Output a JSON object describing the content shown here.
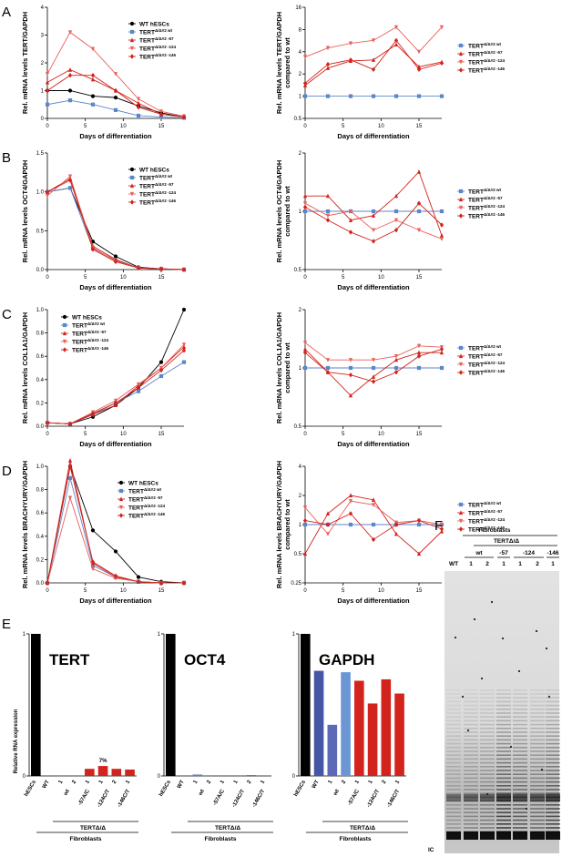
{
  "colors": {
    "wt": "#000000",
    "ctrl": "#5b86c9",
    "red": "#d2231d",
    "lightred": "#e8605a",
    "gray": "#777777"
  },
  "panels": [
    {
      "letter": "A",
      "legend": [
        "WT hESCs",
        "TERTΔ/Δ#2 wt",
        "TERTΔ/Δ#2 -57",
        "TERTΔ/Δ#2 -124",
        "TERTΔ/Δ#2 -146"
      ],
      "left": {
        "ylabel": "Rel. mRNA levels TERT/GAPDH",
        "xlabel": "Days of differentiation",
        "ylim": [
          0,
          4
        ],
        "yticks": [
          "0",
          "1",
          "2",
          "3",
          "4"
        ],
        "xticks": [
          "0",
          "5",
          "10",
          "15"
        ]
      },
      "right": {
        "ylabel": "Rel. mRNA levels TERT/GAPDH compared to wt",
        "xlabel": "Days of differentiation",
        "yticks": [
          "0.5",
          "1",
          "2",
          "4",
          "8",
          "16"
        ],
        "xticks": [
          "0",
          "5",
          "10",
          "15"
        ]
      }
    },
    {
      "letter": "B",
      "legend": [
        "WT hESCs",
        "TERTΔ/Δ#2 wt",
        "TERTΔ/Δ#2 -57",
        "TERTΔ/Δ#2 -124",
        "TERTΔ/Δ#2 -146"
      ],
      "left": {
        "ylabel": "Rel. mRNA levels OCT4/GAPDH",
        "xlabel": "Days of differentiation",
        "ylim": [
          0,
          1.5
        ],
        "yticks": [
          "0.0",
          "0.5",
          "1.0",
          "1.5"
        ],
        "xticks": [
          "0",
          "5",
          "10",
          "15"
        ]
      },
      "right": {
        "ylabel": "Rel. mRNA levels OCT4/GAPDH compared to wt",
        "xlabel": "Days of differentiation",
        "yticks": [
          "0.5",
          "1",
          "2"
        ],
        "xticks": [
          "0",
          "5",
          "10",
          "15"
        ]
      }
    },
    {
      "letter": "C",
      "legend": [
        "WT hESCs",
        "TERTΔ/Δ#2 wt",
        "TERTΔ/Δ#2 -57",
        "TERTΔ/Δ#2 -124",
        "TERTΔ/Δ#2 -146"
      ],
      "left": {
        "ylabel": "Rel. mRNA levels COL1A1/GAPDH",
        "xlabel": "Days of differentiation",
        "ylim": [
          0,
          1.0
        ],
        "yticks": [
          "0.0",
          "0.2",
          "0.4",
          "0.6",
          "0.8",
          "1.0"
        ],
        "xticks": [
          "0",
          "5",
          "10",
          "15"
        ]
      },
      "right": {
        "ylabel": "Rel. mRNA levels COL1A1/GAPDH compared to wt",
        "xlabel": "Days of differentiation",
        "yticks": [
          "0.5",
          "1",
          "2"
        ],
        "xticks": [
          "0",
          "5",
          "10",
          "15"
        ]
      }
    },
    {
      "letter": "D",
      "legend": [
        "WT hESCs",
        "TERTΔ/Δ#2 wt",
        "TERTΔ/Δ#2 -57",
        "TERTΔ/Δ#2 -124",
        "TERTΔ/Δ#2 -146"
      ],
      "left": {
        "ylabel": "Rel. mRNA levels BRACHYURY/GAPDH",
        "xlabel": "Days of differentiation",
        "ylim": [
          0,
          1.0
        ],
        "yticks": [
          "0.0",
          "0.2",
          "0.4",
          "0.6",
          "0.8",
          "1.0"
        ],
        "xticks": [
          "0",
          "5",
          "10",
          "15"
        ]
      },
      "right": {
        "ylabel": "Rel. mRNA levels BRACHYURY/GAPDH compared to wt",
        "xlabel": "Days of differentiation",
        "yticks": [
          "0.25",
          "0.5",
          "1",
          "2",
          "4"
        ],
        "xticks": [
          "0",
          "5",
          "10",
          "15"
        ]
      }
    }
  ],
  "panel_e": {
    "letter": "E",
    "ylabel": "Relative RNA expression",
    "yticks": [
      "0",
      "1"
    ],
    "titles": [
      "TERT",
      "OCT4",
      "GAPDH"
    ],
    "cat_labels": [
      "hESCs",
      "WT",
      "1",
      "2",
      "1",
      "1",
      "2",
      "1"
    ],
    "group_labels": [
      "wt",
      "-57A/C",
      "-124C/T",
      "-146C/T"
    ],
    "geno": "TERTΔ/Δ",
    "fibro": "Fibroblasts",
    "annotation": "7%"
  },
  "panel_f": {
    "letter": "F",
    "fibro": "Fibroblasts",
    "geno": "TERTΔ/Δ",
    "groups": [
      "wt",
      "-57",
      "-124",
      "-146"
    ],
    "lanes": [
      "WT",
      "1",
      "2",
      "1",
      "1",
      "2",
      "1"
    ],
    "ic": "IC"
  },
  "chart_data": [
    {
      "type": "line",
      "title": "A left",
      "xlabel": "Days of differentiation",
      "ylabel": "Rel. mRNA levels TERT/GAPDH",
      "ylim": [
        0,
        4
      ],
      "x": [
        0,
        3,
        6,
        9,
        12,
        15,
        18
      ],
      "series": [
        {
          "name": "WT hESCs",
          "values": [
            1.0,
            1.0,
            0.8,
            0.75,
            0.45,
            0.2,
            0.05
          ]
        },
        {
          "name": "TERTΔ/Δ#2 wt",
          "values": [
            0.5,
            0.65,
            0.5,
            0.3,
            0.1,
            0.05,
            0.02
          ]
        },
        {
          "name": "TERTΔ/Δ#2 -57",
          "values": [
            1.3,
            1.75,
            1.4,
            1.0,
            0.55,
            0.15,
            0.05
          ]
        },
        {
          "name": "TERTΔ/Δ#2 -124",
          "values": [
            1.6,
            3.1,
            2.5,
            1.6,
            0.7,
            0.25,
            0.08
          ]
        },
        {
          "name": "TERTΔ/Δ#2 -146",
          "values": [
            1.0,
            1.55,
            1.55,
            1.0,
            0.4,
            0.15,
            0.05
          ]
        }
      ]
    },
    {
      "type": "line",
      "title": "A right",
      "log": true,
      "ylim": [
        0.5,
        16
      ],
      "x": [
        0,
        3,
        6,
        9,
        12,
        15,
        18
      ],
      "series": [
        {
          "name": "TERTΔ/Δ#2 wt",
          "values": [
            1,
            1,
            1,
            1,
            1,
            1,
            1
          ]
        },
        {
          "name": "TERTΔ/Δ#2 -57",
          "values": [
            1.4,
            2.4,
            3.0,
            3.1,
            5.0,
            2.5,
            2.9
          ]
        },
        {
          "name": "TERTΔ/Δ#2 -124",
          "values": [
            3.4,
            4.5,
            5.2,
            5.7,
            8.6,
            4.0,
            8.6
          ]
        },
        {
          "name": "TERTΔ/Δ#2 -146",
          "values": [
            1.5,
            2.7,
            3.1,
            2.3,
            5.7,
            2.3,
            2.8
          ]
        }
      ]
    },
    {
      "type": "line",
      "title": "B left",
      "ylim": [
        0,
        1.5
      ],
      "x": [
        0,
        3,
        6,
        9,
        12,
        15,
        18
      ],
      "series": [
        {
          "name": "WT hESCs",
          "values": [
            1.0,
            1.05,
            0.36,
            0.17,
            0.03,
            0.01,
            0.0
          ]
        },
        {
          "name": "TERTΔ/Δ#2 wt",
          "values": [
            1.0,
            1.05,
            0.27,
            0.12,
            0.02,
            0.01,
            0.0
          ]
        },
        {
          "name": "TERTΔ/Δ#2 -57",
          "values": [
            1.0,
            1.17,
            0.3,
            0.13,
            0.02,
            0.01,
            0.0
          ]
        },
        {
          "name": "TERTΔ/Δ#2 -124",
          "values": [
            0.95,
            1.2,
            0.28,
            0.11,
            0.02,
            0.01,
            0.0
          ]
        },
        {
          "name": "TERTΔ/Δ#2 -146",
          "values": [
            1.0,
            1.15,
            0.26,
            0.1,
            0.02,
            0.01,
            0.0
          ]
        }
      ]
    },
    {
      "type": "line",
      "title": "B right",
      "log": true,
      "ylim": [
        0.5,
        2
      ],
      "x": [
        0,
        3,
        6,
        9,
        12,
        15,
        18
      ],
      "series": [
        {
          "name": "TERTΔ/Δ#2 wt",
          "values": [
            1,
            1,
            1,
            1,
            1,
            1,
            1
          ]
        },
        {
          "name": "TERTΔ/Δ#2 -57",
          "values": [
            1.2,
            1.2,
            0.9,
            0.95,
            1.2,
            1.6,
            0.75
          ]
        },
        {
          "name": "TERTΔ/Δ#2 -124",
          "values": [
            1.1,
            0.95,
            1.0,
            0.8,
            0.9,
            0.8,
            0.72
          ]
        },
        {
          "name": "TERTΔ/Δ#2 -146",
          "values": [
            1.05,
            0.9,
            0.78,
            0.7,
            0.8,
            1.1,
            0.85
          ]
        }
      ]
    },
    {
      "type": "line",
      "title": "C left",
      "ylim": [
        0,
        1.0
      ],
      "x": [
        0,
        3,
        6,
        9,
        12,
        15,
        18
      ],
      "series": [
        {
          "name": "WT hESCs",
          "values": [
            0.03,
            0.02,
            0.08,
            0.18,
            0.33,
            0.55,
            1.0
          ]
        },
        {
          "name": "TERTΔ/Δ#2 wt",
          "values": [
            0.03,
            0.02,
            0.1,
            0.2,
            0.3,
            0.43,
            0.55
          ]
        },
        {
          "name": "TERTΔ/Δ#2 -57",
          "values": [
            0.03,
            0.02,
            0.1,
            0.18,
            0.35,
            0.5,
            0.68
          ]
        },
        {
          "name": "TERTΔ/Δ#2 -124",
          "values": [
            0.03,
            0.02,
            0.12,
            0.22,
            0.36,
            0.5,
            0.7
          ]
        },
        {
          "name": "TERTΔ/Δ#2 -146",
          "values": [
            0.03,
            0.02,
            0.11,
            0.2,
            0.33,
            0.48,
            0.65
          ]
        }
      ]
    },
    {
      "type": "line",
      "title": "C right",
      "log": true,
      "ylim": [
        0.5,
        2
      ],
      "x": [
        0,
        3,
        6,
        9,
        12,
        15,
        18
      ],
      "series": [
        {
          "name": "TERTΔ/Δ#2 wt",
          "values": [
            1,
            1,
            1,
            1,
            1,
            1,
            1
          ]
        },
        {
          "name": "TERTΔ/Δ#2 -57",
          "values": [
            1.25,
            0.95,
            0.72,
            0.9,
            1.1,
            1.2,
            1.2
          ]
        },
        {
          "name": "TERTΔ/Δ#2 -124",
          "values": [
            1.35,
            1.1,
            1.1,
            1.1,
            1.15,
            1.3,
            1.28
          ]
        },
        {
          "name": "TERTΔ/Δ#2 -146",
          "values": [
            1.2,
            0.95,
            0.92,
            0.85,
            0.95,
            1.15,
            1.25
          ]
        }
      ]
    },
    {
      "type": "line",
      "title": "D left",
      "ylim": [
        0,
        1.0
      ],
      "x": [
        0,
        3,
        6,
        9,
        12,
        15,
        18
      ],
      "series": [
        {
          "name": "WT hESCs",
          "values": [
            0.0,
            1.0,
            0.45,
            0.27,
            0.05,
            0.01,
            0.0
          ]
        },
        {
          "name": "TERTΔ/Δ#2 wt",
          "values": [
            0.0,
            0.9,
            0.15,
            0.05,
            0.01,
            0.0,
            0.0
          ]
        },
        {
          "name": "TERTΔ/Δ#2 -57",
          "values": [
            0.0,
            1.05,
            0.17,
            0.05,
            0.01,
            0.0,
            0.0
          ]
        },
        {
          "name": "TERTΔ/Δ#2 -124",
          "values": [
            0.0,
            0.73,
            0.12,
            0.04,
            0.01,
            0.0,
            0.0
          ]
        },
        {
          "name": "TERTΔ/Δ#2 -146",
          "values": [
            0.0,
            1.0,
            0.18,
            0.06,
            0.01,
            0.0,
            0.0
          ]
        }
      ]
    },
    {
      "type": "line",
      "title": "D right",
      "log": true,
      "ylim": [
        0.25,
        4
      ],
      "x": [
        0,
        3,
        6,
        9,
        12,
        15,
        18
      ],
      "series": [
        {
          "name": "TERTΔ/Δ#2 wt",
          "values": [
            1,
            1,
            1,
            1,
            1,
            1,
            1
          ]
        },
        {
          "name": "TERTΔ/Δ#2 -57",
          "values": [
            0.5,
            1.3,
            2.0,
            1.8,
            0.8,
            0.5,
            0.85
          ]
        },
        {
          "name": "TERTΔ/Δ#2 -124",
          "values": [
            1.5,
            0.8,
            1.75,
            1.6,
            1.05,
            1.1,
            1.0
          ]
        },
        {
          "name": "TERTΔ/Δ#2 -146",
          "values": [
            1.1,
            1.0,
            1.3,
            0.7,
            1.0,
            1.1,
            0.9
          ]
        }
      ]
    },
    {
      "type": "bar",
      "title": "TERT",
      "ylim": [
        0,
        1
      ],
      "categories": [
        "hESCs",
        "WT",
        "wt 1",
        "wt 2",
        "-57A/C 1",
        "-124C/T 1",
        "-124C/T 2",
        "-146C/T 1"
      ],
      "values": [
        1.0,
        0.0,
        0.0,
        0.0,
        0.05,
        0.07,
        0.05,
        0.045
      ]
    },
    {
      "type": "bar",
      "title": "OCT4",
      "ylim": [
        0,
        1
      ],
      "categories": [
        "hESCs",
        "WT",
        "wt 1",
        "wt 2",
        "-57A/C 1",
        "-124C/T 1",
        "-124C/T 2",
        "-146C/T 1"
      ],
      "values": [
        1.0,
        0.0,
        0.01,
        0.0,
        0.0,
        0.0,
        0.005,
        0.0
      ]
    },
    {
      "type": "bar",
      "title": "GAPDH",
      "ylim": [
        0,
        1
      ],
      "categories": [
        "hESCs",
        "WT",
        "wt 1",
        "wt 2",
        "-57A/C 1",
        "-124C/T 1",
        "-124C/T 2",
        "-146C/T 1"
      ],
      "values": [
        1.0,
        0.74,
        0.36,
        0.73,
        0.67,
        0.51,
        0.68,
        0.58
      ]
    }
  ]
}
